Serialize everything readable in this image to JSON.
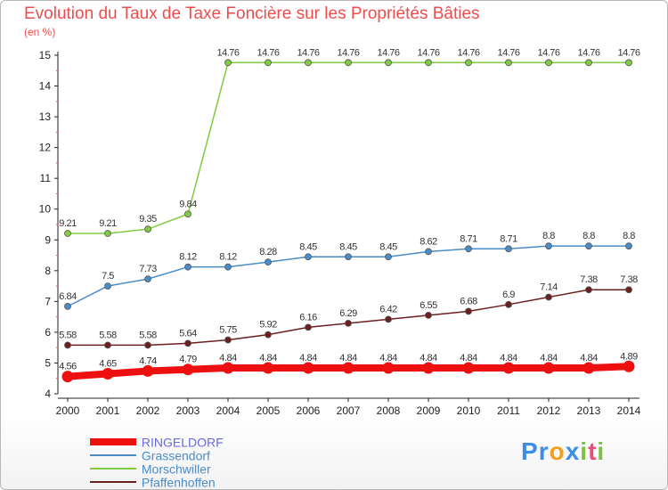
{
  "chart_data": {
    "type": "line",
    "title": "Evolution du Taux de Taxe Foncière sur les Propriétés Bâties",
    "ylabel": "(en %)",
    "xlabel": "",
    "ylim": [
      4,
      15
    ],
    "yticks": [
      "4",
      "5",
      "6",
      "7",
      "8",
      "9",
      "10",
      "11",
      "12",
      "13",
      "14",
      "15"
    ],
    "categories": [
      "2000",
      "2001",
      "2002",
      "2003",
      "2004",
      "2005",
      "2006",
      "2007",
      "2008",
      "2009",
      "2010",
      "2011",
      "2012",
      "2013",
      "2014"
    ],
    "series": [
      {
        "name": "RINGELDORF",
        "color": "#ee1010",
        "values": [
          4.56,
          4.65,
          4.74,
          4.79,
          4.84,
          4.84,
          4.84,
          4.84,
          4.84,
          4.84,
          4.84,
          4.84,
          4.84,
          4.84,
          4.89
        ],
        "labels": [
          "4.56",
          "4.65",
          "4.74",
          "4.79",
          "4.84",
          "4.84",
          "4.84",
          "4.84",
          "4.84",
          "4.84",
          "4.84",
          "4.84",
          "4.84",
          "4.84",
          "4.89"
        ]
      },
      {
        "name": "Grassendorf",
        "color": "#4a8cc8",
        "values": [
          6.84,
          7.5,
          7.73,
          8.12,
          8.12,
          8.28,
          8.45,
          8.45,
          8.45,
          8.62,
          8.71,
          8.71,
          8.8,
          8.8,
          8.8
        ],
        "labels": [
          "6.84",
          "7.5",
          "7.73",
          "8.12",
          "8.12",
          "8.28",
          "8.45",
          "8.45",
          "8.45",
          "8.62",
          "8.71",
          "8.71",
          "8.8",
          "8.8",
          "8.8"
        ]
      },
      {
        "name": "Morschwiller",
        "color": "#80cc40",
        "values": [
          9.21,
          9.21,
          9.35,
          9.84,
          14.76,
          14.76,
          14.76,
          14.76,
          14.76,
          14.76,
          14.76,
          14.76,
          14.76,
          14.76,
          14.76
        ],
        "labels": [
          "9.21",
          "9.21",
          "9.35",
          "9.84",
          "14.76",
          "14.76",
          "14.76",
          "14.76",
          "14.76",
          "14.76",
          "14.76",
          "14.76",
          "14.76",
          "14.76",
          "14.76"
        ]
      },
      {
        "name": "Pfaffenhoffen",
        "color": "#6b1f1f",
        "values": [
          5.58,
          5.58,
          5.58,
          5.64,
          5.75,
          5.92,
          6.16,
          6.29,
          6.42,
          6.55,
          6.68,
          6.9,
          7.14,
          7.38,
          7.38
        ],
        "labels": [
          "5.58",
          "5.58",
          "5.58",
          "5.64",
          "5.75",
          "5.92",
          "6.16",
          "6.29",
          "6.42",
          "6.55",
          "6.68",
          "6.9",
          "7.14",
          "7.38",
          "7.38"
        ]
      }
    ],
    "legend_position": "bottom-left"
  },
  "brand": {
    "logo_letters": [
      "P",
      "r",
      "o",
      "x",
      "i",
      "t",
      "i"
    ],
    "logo_colors": [
      "#3a8ee6",
      "#3a8ee6",
      "#f29f1c",
      "#3a8ee6",
      "#7bc142",
      "#e84d7b",
      "#7bc142"
    ]
  }
}
